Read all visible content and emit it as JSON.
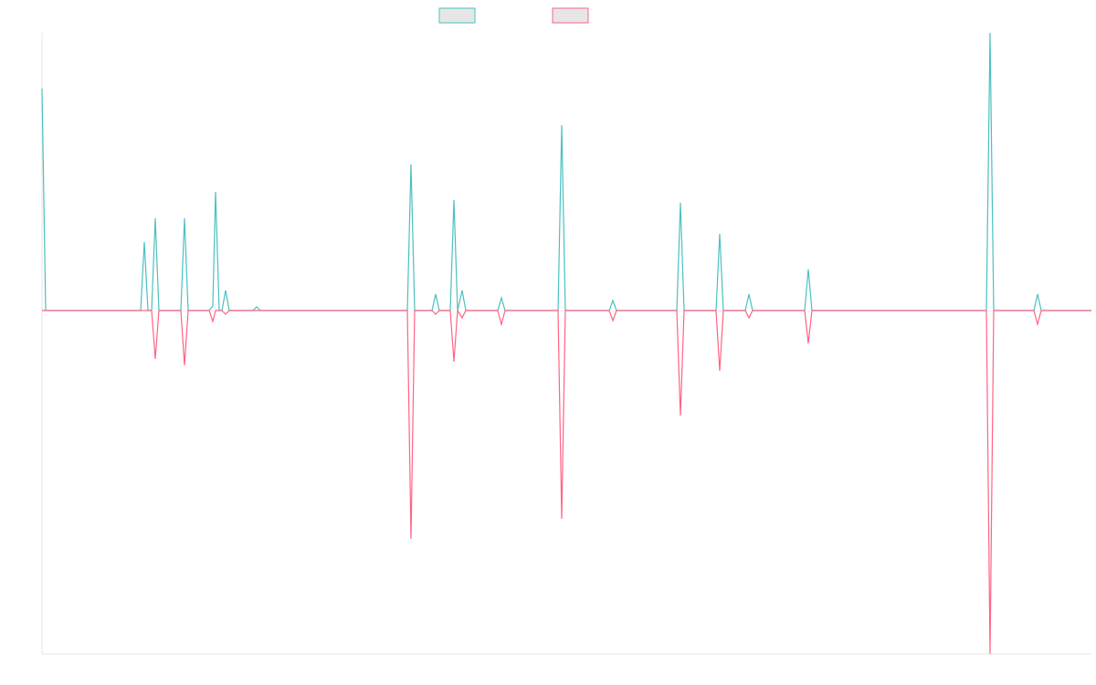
{
  "chart_data": {
    "type": "line",
    "x": [
      0,
      4,
      108,
      112,
      116,
      120,
      124,
      128,
      152,
      156,
      160,
      183,
      187,
      190,
      194,
      197,
      201,
      205,
      231,
      235,
      239,
      400,
      404,
      408,
      427,
      431,
      435,
      447,
      451,
      455,
      460,
      464,
      499,
      503,
      507,
      565,
      569,
      573,
      621,
      625,
      629,
      695,
      699,
      703,
      738,
      742,
      746,
      770,
      774,
      778,
      835,
      839,
      843,
      1034,
      1038,
      1042,
      1086,
      1090,
      1094,
      1149
    ],
    "series": [
      {
        "color": "#4bc0c0",
        "values": [
          243,
          0,
          0,
          75,
          0,
          0,
          101,
          0,
          0,
          101,
          0,
          0,
          5,
          130,
          0,
          0,
          22,
          0,
          0,
          4,
          0,
          0,
          160,
          0,
          0,
          18,
          0,
          0,
          121,
          0,
          22,
          0,
          0,
          14,
          0,
          0,
          203,
          0,
          0,
          11,
          0,
          0,
          118,
          0,
          0,
          84,
          0,
          0,
          18,
          0,
          0,
          45,
          0,
          0,
          304,
          0,
          0,
          18,
          0,
          0
        ]
      },
      {
        "color": "#ff6384",
        "values": [
          0,
          0,
          0,
          0,
          0,
          0,
          -53,
          0,
          0,
          -60,
          0,
          0,
          -12,
          0,
          0,
          0,
          -4,
          0,
          0,
          0,
          0,
          0,
          -250,
          0,
          0,
          -4,
          0,
          0,
          -56,
          0,
          -8,
          0,
          0,
          -15,
          0,
          0,
          -228,
          0,
          0,
          -11,
          0,
          0,
          -115,
          0,
          0,
          -66,
          0,
          0,
          -8,
          0,
          0,
          -36,
          0,
          0,
          -376,
          0,
          0,
          -15,
          0,
          0
        ]
      }
    ],
    "xlim": [
      0,
      1149
    ],
    "ylim": [
      -376,
      304
    ]
  }
}
